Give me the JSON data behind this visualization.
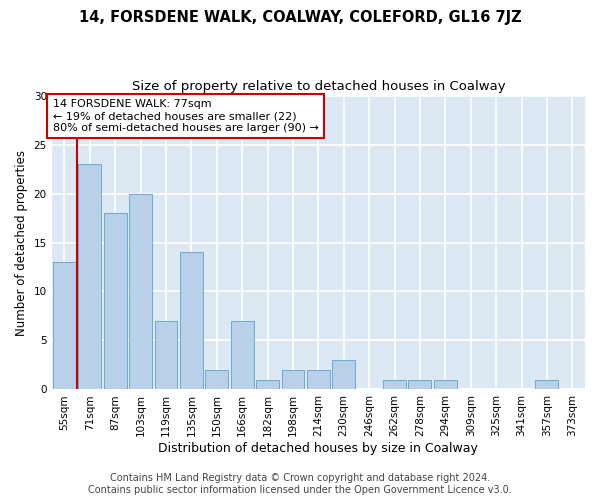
{
  "title": "14, FORSDENE WALK, COALWAY, COLEFORD, GL16 7JZ",
  "subtitle": "Size of property relative to detached houses in Coalway",
  "xlabel": "Distribution of detached houses by size in Coalway",
  "ylabel": "Number of detached properties",
  "categories": [
    "55sqm",
    "71sqm",
    "87sqm",
    "103sqm",
    "119sqm",
    "135sqm",
    "150sqm",
    "166sqm",
    "182sqm",
    "198sqm",
    "214sqm",
    "230sqm",
    "246sqm",
    "262sqm",
    "278sqm",
    "294sqm",
    "309sqm",
    "325sqm",
    "341sqm",
    "357sqm",
    "373sqm"
  ],
  "values": [
    13,
    23,
    18,
    20,
    7,
    14,
    2,
    7,
    1,
    2,
    2,
    3,
    0,
    1,
    1,
    1,
    0,
    0,
    0,
    1,
    0
  ],
  "bar_color": "#b8d0e8",
  "bar_edge_color": "#6aaad4",
  "vline_index": 1.0,
  "vline_color": "#cc0000",
  "annotation_line1": "14 FORSDENE WALK: 77sqm",
  "annotation_line2": "← 19% of detached houses are smaller (22)",
  "annotation_line3": "80% of semi-detached houses are larger (90) →",
  "annotation_box_facecolor": "#ffffff",
  "annotation_box_edgecolor": "#cc0000",
  "ylim": [
    0,
    30
  ],
  "yticks": [
    0,
    5,
    10,
    15,
    20,
    25,
    30
  ],
  "footer_line1": "Contains HM Land Registry data © Crown copyright and database right 2024.",
  "footer_line2": "Contains public sector information licensed under the Open Government Licence v3.0.",
  "plot_bg_color": "#dce9f5",
  "fig_bg_color": "#ffffff",
  "grid_color": "#ffffff",
  "title_fontsize": 10.5,
  "subtitle_fontsize": 9.5,
  "ylabel_fontsize": 8.5,
  "xlabel_fontsize": 9,
  "tick_fontsize": 7.5,
  "annotation_fontsize": 8,
  "footer_fontsize": 7
}
